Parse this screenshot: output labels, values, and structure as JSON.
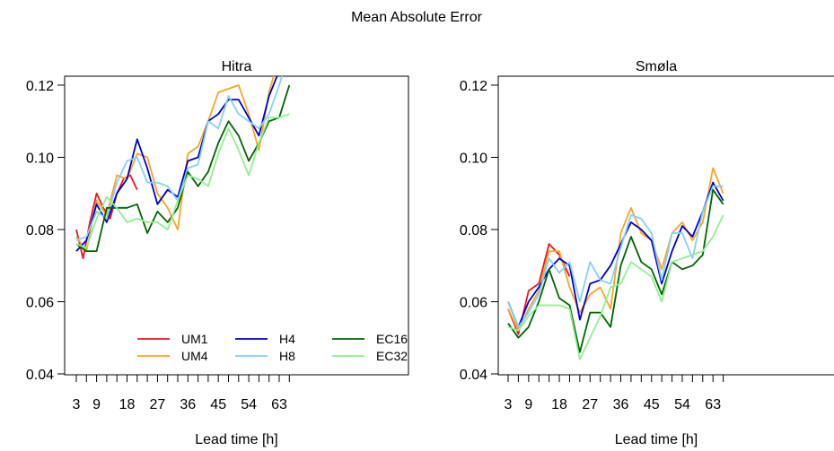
{
  "figure": {
    "title": "Mean Absolute Error"
  },
  "colors": {
    "UM1": "#e41a1c",
    "UM4": "#f5a623",
    "H4": "#0000cc",
    "H8": "#87cefa",
    "EC16": "#006400",
    "EC32": "#90ee90"
  },
  "chart_data": [
    {
      "type": "line",
      "title": "Hitra",
      "xlabel": "Lead time [h]",
      "ylabel": "",
      "xlim": [
        1,
        66
      ],
      "ylim": [
        0.04,
        0.13
      ],
      "xticks": [
        3,
        6,
        9,
        12,
        15,
        18,
        21,
        24,
        27,
        30,
        33,
        36,
        39,
        42,
        45,
        48,
        51,
        54,
        57,
        60,
        63,
        66
      ],
      "xtick_labels": [
        "3",
        "",
        "9",
        "",
        "",
        "18",
        "",
        "",
        "27",
        "",
        "",
        "36",
        "",
        "",
        "45",
        "",
        "",
        "54",
        "",
        "",
        "63",
        ""
      ],
      "yticks": [
        0.04,
        0.06,
        0.08,
        0.1,
        0.12
      ],
      "ytick_labels": [
        "0.04",
        "0.06",
        "0.08",
        "0.10",
        "0.12"
      ],
      "legend": {
        "placement": "bottom-right",
        "columns": 3
      },
      "series": [
        {
          "name": "UM1",
          "x": [
            3,
            5,
            7,
            9,
            11,
            13,
            15,
            17,
            19,
            21
          ],
          "y": [
            0.08,
            0.072,
            0.082,
            0.09,
            0.086,
            0.083,
            0.09,
            0.094,
            0.095,
            0.091
          ]
        },
        {
          "name": "UM4",
          "x": [
            3,
            6,
            9,
            12,
            15,
            18,
            21,
            24,
            27,
            30,
            33,
            36,
            39,
            42,
            45,
            48,
            51,
            54,
            57,
            60,
            63,
            66
          ],
          "y": [
            0.078,
            0.074,
            0.088,
            0.084,
            0.095,
            0.094,
            0.101,
            0.1,
            0.09,
            0.086,
            0.08,
            0.101,
            0.103,
            0.11,
            0.118,
            0.119,
            0.12,
            0.112,
            0.102,
            0.118,
            0.128,
            0.124
          ]
        },
        {
          "name": "H4",
          "x": [
            3,
            6,
            9,
            12,
            15,
            18,
            21,
            24,
            27,
            30,
            33,
            36,
            39,
            42,
            45,
            48,
            51,
            54,
            57,
            60,
            63,
            66
          ],
          "y": [
            0.074,
            0.077,
            0.087,
            0.082,
            0.09,
            0.094,
            0.105,
            0.097,
            0.087,
            0.091,
            0.089,
            0.099,
            0.1,
            0.11,
            0.112,
            0.116,
            0.116,
            0.111,
            0.106,
            0.117,
            0.124,
            0.127
          ]
        },
        {
          "name": "H8",
          "x": [
            3,
            6,
            9,
            12,
            15,
            18,
            21,
            24,
            27,
            30,
            33,
            36,
            39,
            42,
            45,
            48,
            51,
            54,
            57,
            60,
            63,
            66
          ],
          "y": [
            0.077,
            0.078,
            0.085,
            0.083,
            0.093,
            0.099,
            0.1,
            0.093,
            0.093,
            0.092,
            0.088,
            0.097,
            0.098,
            0.11,
            0.108,
            0.117,
            0.112,
            0.11,
            0.108,
            0.112,
            0.12,
            0.129
          ]
        },
        {
          "name": "EC16",
          "x": [
            3,
            6,
            9,
            12,
            15,
            18,
            21,
            24,
            27,
            30,
            33,
            36,
            39,
            42,
            45,
            48,
            51,
            54,
            57,
            60,
            63,
            66
          ],
          "y": [
            0.076,
            0.074,
            0.074,
            0.086,
            0.086,
            0.086,
            0.087,
            0.079,
            0.085,
            0.082,
            0.086,
            0.096,
            0.092,
            0.096,
            0.104,
            0.11,
            0.106,
            0.099,
            0.104,
            0.11,
            0.111,
            0.12
          ]
        },
        {
          "name": "EC32",
          "x": [
            3,
            6,
            9,
            12,
            15,
            18,
            21,
            24,
            27,
            30,
            33,
            36,
            39,
            42,
            45,
            48,
            51,
            54,
            57,
            60,
            63,
            66
          ],
          "y": [
            0.076,
            0.075,
            0.083,
            0.089,
            0.086,
            0.082,
            0.083,
            0.082,
            0.082,
            0.08,
            0.088,
            0.095,
            0.094,
            0.092,
            0.101,
            0.108,
            0.102,
            0.095,
            0.104,
            0.111,
            0.111,
            0.112
          ]
        }
      ]
    },
    {
      "type": "line",
      "title": "Smøla",
      "xlabel": "Lead time [h]",
      "ylabel": "",
      "xlim": [
        1,
        66
      ],
      "ylim": [
        0.04,
        0.13
      ],
      "xticks": [
        3,
        6,
        9,
        12,
        15,
        18,
        21,
        24,
        27,
        30,
        33,
        36,
        39,
        42,
        45,
        48,
        51,
        54,
        57,
        60,
        63,
        66
      ],
      "xtick_labels": [
        "3",
        "",
        "9",
        "",
        "",
        "18",
        "",
        "",
        "27",
        "",
        "",
        "36",
        "",
        "",
        "45",
        "",
        "",
        "54",
        "",
        "",
        "63",
        ""
      ],
      "yticks": [
        0.04,
        0.06,
        0.08,
        0.1,
        0.12
      ],
      "ytick_labels": [
        "0.04",
        "0.06",
        "0.08",
        "0.10",
        "0.12"
      ],
      "legend": null,
      "series": [
        {
          "name": "UM1",
          "x": [
            3,
            6,
            9,
            12,
            15,
            18,
            21
          ],
          "y": [
            0.058,
            0.051,
            0.063,
            0.065,
            0.076,
            0.073,
            0.067
          ]
        },
        {
          "name": "UM4",
          "x": [
            3,
            6,
            9,
            12,
            15,
            18,
            21,
            24,
            27,
            30,
            33,
            36,
            39,
            42,
            45,
            48,
            51,
            54,
            57,
            60,
            63,
            66
          ],
          "y": [
            0.058,
            0.052,
            0.058,
            0.063,
            0.074,
            0.074,
            0.064,
            0.057,
            0.062,
            0.064,
            0.058,
            0.079,
            0.086,
            0.079,
            0.077,
            0.069,
            0.079,
            0.082,
            0.077,
            0.082,
            0.097,
            0.09
          ]
        },
        {
          "name": "H4",
          "x": [
            3,
            6,
            9,
            12,
            15,
            18,
            21,
            24,
            27,
            30,
            33,
            36,
            39,
            42,
            45,
            48,
            51,
            54,
            57,
            60,
            63,
            66
          ],
          "y": [
            0.06,
            0.053,
            0.06,
            0.064,
            0.069,
            0.072,
            0.07,
            0.055,
            0.065,
            0.066,
            0.07,
            0.076,
            0.082,
            0.08,
            0.077,
            0.065,
            0.074,
            0.081,
            0.078,
            0.085,
            0.093,
            0.088
          ]
        },
        {
          "name": "H8",
          "x": [
            3,
            6,
            9,
            12,
            15,
            18,
            21,
            24,
            27,
            30,
            33,
            36,
            39,
            42,
            45,
            48,
            51,
            54,
            57,
            60,
            63,
            66
          ],
          "y": [
            0.06,
            0.053,
            0.057,
            0.062,
            0.072,
            0.068,
            0.071,
            0.06,
            0.071,
            0.066,
            0.065,
            0.075,
            0.084,
            0.083,
            0.079,
            0.066,
            0.079,
            0.079,
            0.072,
            0.085,
            0.092,
            0.092
          ]
        },
        {
          "name": "EC16",
          "x": [
            3,
            6,
            9,
            12,
            15,
            18,
            21,
            24,
            27,
            30,
            33,
            36,
            39,
            42,
            45,
            48,
            51,
            54,
            57,
            60,
            63,
            66
          ],
          "y": [
            0.054,
            0.05,
            0.053,
            0.06,
            0.069,
            0.061,
            0.059,
            0.046,
            0.057,
            0.057,
            0.053,
            0.07,
            0.078,
            0.071,
            0.069,
            0.062,
            0.071,
            0.069,
            0.07,
            0.073,
            0.091,
            0.087
          ]
        },
        {
          "name": "EC32",
          "x": [
            3,
            6,
            9,
            12,
            15,
            18,
            21,
            24,
            27,
            30,
            33,
            36,
            39,
            42,
            45,
            48,
            51,
            54,
            57,
            60,
            63,
            66
          ],
          "y": [
            0.053,
            0.052,
            0.056,
            0.059,
            0.059,
            0.059,
            0.058,
            0.044,
            0.05,
            0.056,
            0.064,
            0.065,
            0.071,
            0.069,
            0.067,
            0.06,
            0.071,
            0.072,
            0.073,
            0.074,
            0.078,
            0.084
          ]
        }
      ]
    }
  ]
}
